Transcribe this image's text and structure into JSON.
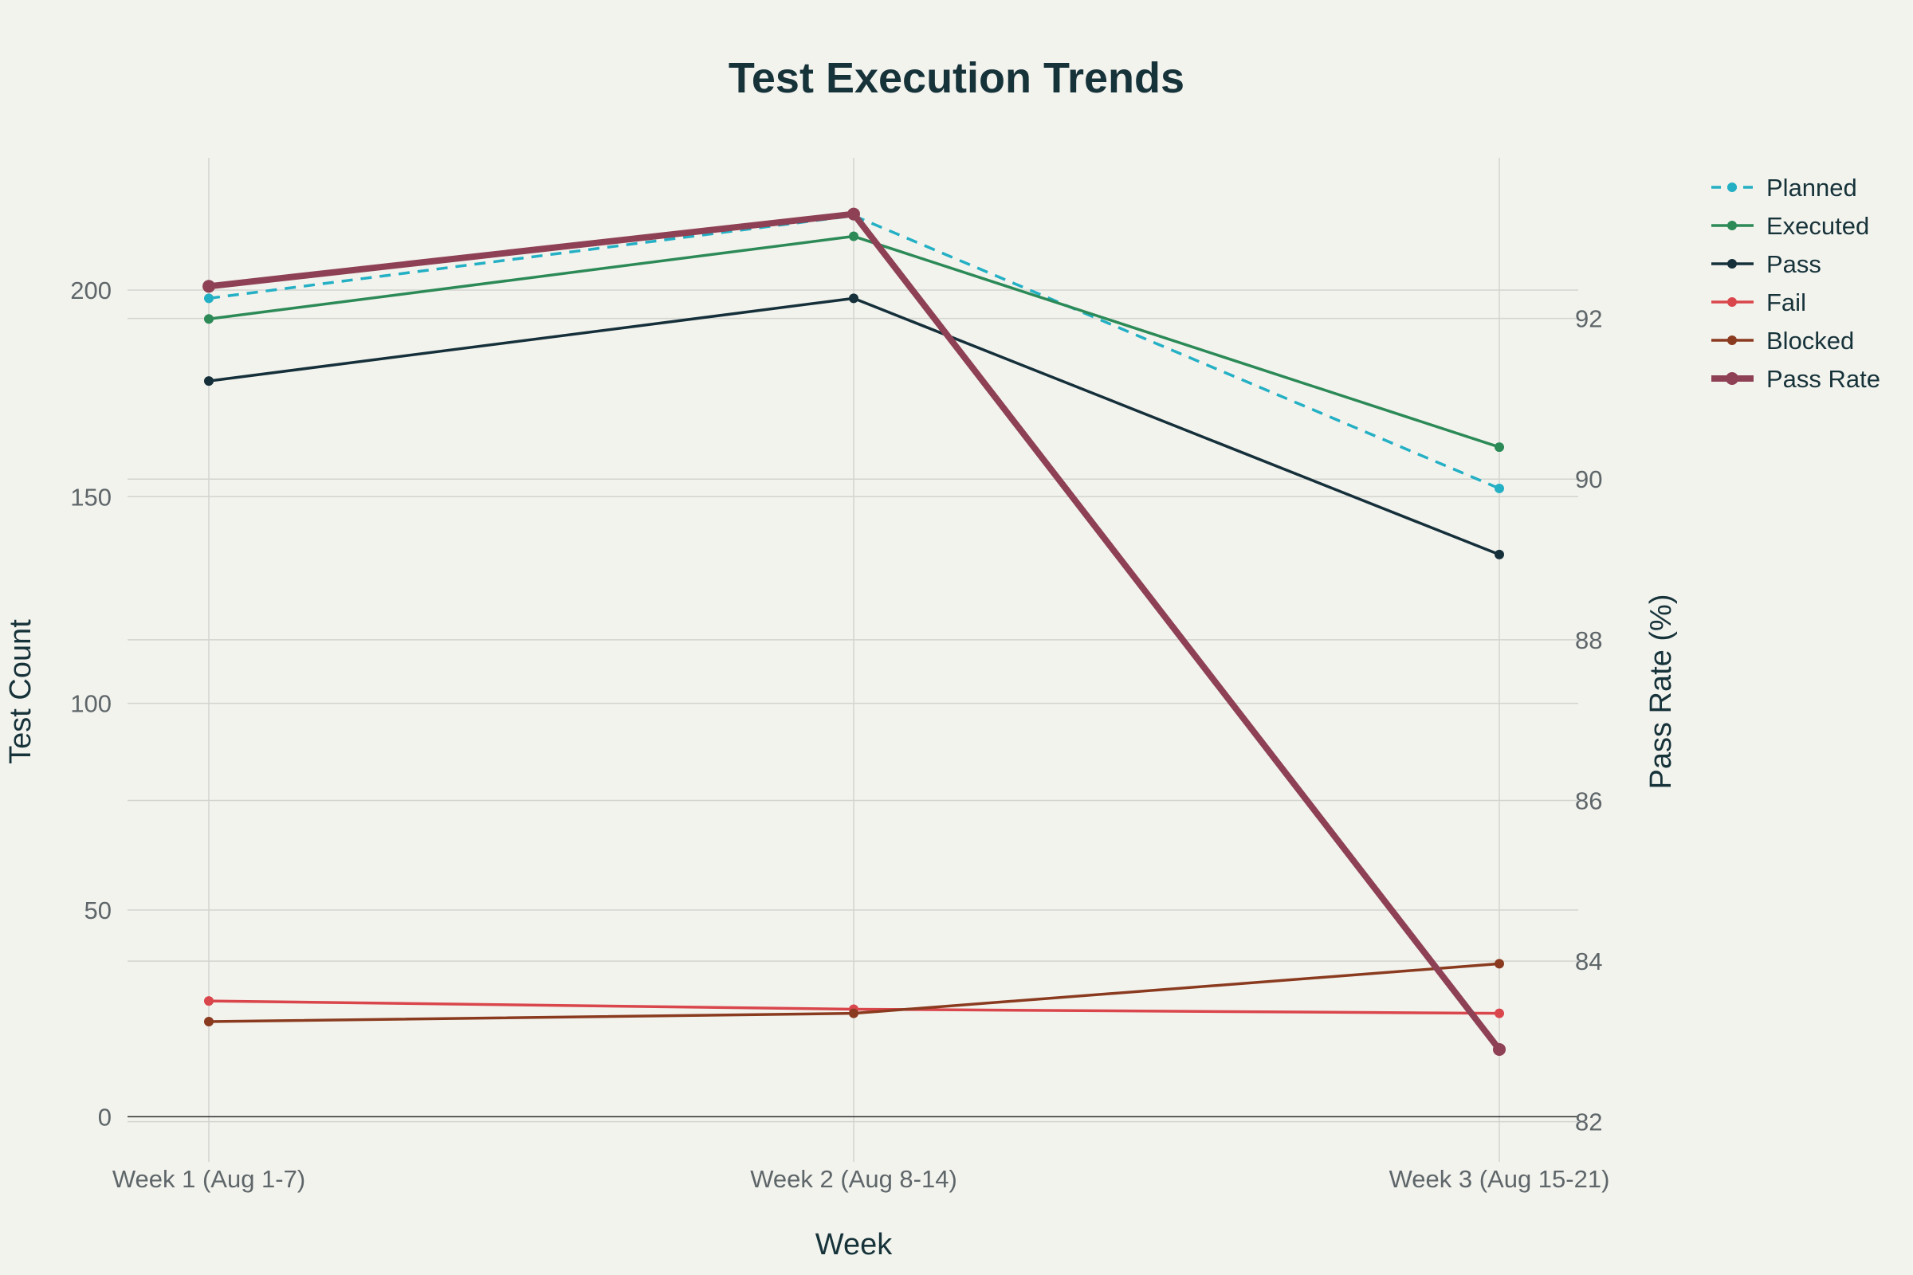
{
  "chart_data": {
    "type": "line",
    "title": "Test Execution Trends",
    "xlabel": "Week",
    "ylabel": "Test Count",
    "y2label": "Pass Rate (%)",
    "categories": [
      "Week 1 (Aug 1-7)",
      "Week 2 (Aug 8-14)",
      "Week 3 (Aug 15-21)"
    ],
    "ylim": [
      -9,
      232
    ],
    "y2lim": [
      81.6,
      94.0
    ],
    "yticks": [
      0,
      50,
      100,
      150,
      200
    ],
    "y2ticks": [
      82,
      84,
      86,
      88,
      90,
      92
    ],
    "grid": true,
    "legend_position": "top-right",
    "series": [
      {
        "name": "Planned",
        "axis": "left",
        "values": [
          198,
          218,
          152
        ],
        "color": "#24b0c4",
        "dash": true,
        "width": 3.5,
        "marker": 6
      },
      {
        "name": "Executed",
        "axis": "left",
        "values": [
          193,
          213,
          162
        ],
        "color": "#2c8a57",
        "dash": false,
        "width": 3.5,
        "marker": 6
      },
      {
        "name": "Pass",
        "axis": "left",
        "values": [
          178,
          198,
          136
        ],
        "color": "#15303a",
        "dash": false,
        "width": 3.5,
        "marker": 6
      },
      {
        "name": "Fail",
        "axis": "left",
        "values": [
          28,
          26,
          25
        ],
        "color": "#d9464b",
        "dash": false,
        "width": 3.5,
        "marker": 6
      },
      {
        "name": "Blocked",
        "axis": "left",
        "values": [
          23,
          25,
          37
        ],
        "color": "#8a3b1f",
        "dash": false,
        "width": 3.5,
        "marker": 6
      },
      {
        "name": "Pass Rate",
        "axis": "right",
        "values": [
          92.4,
          93.3,
          82.9
        ],
        "color": "#8e4154",
        "dash": false,
        "width": 8,
        "marker": 8
      }
    ]
  }
}
